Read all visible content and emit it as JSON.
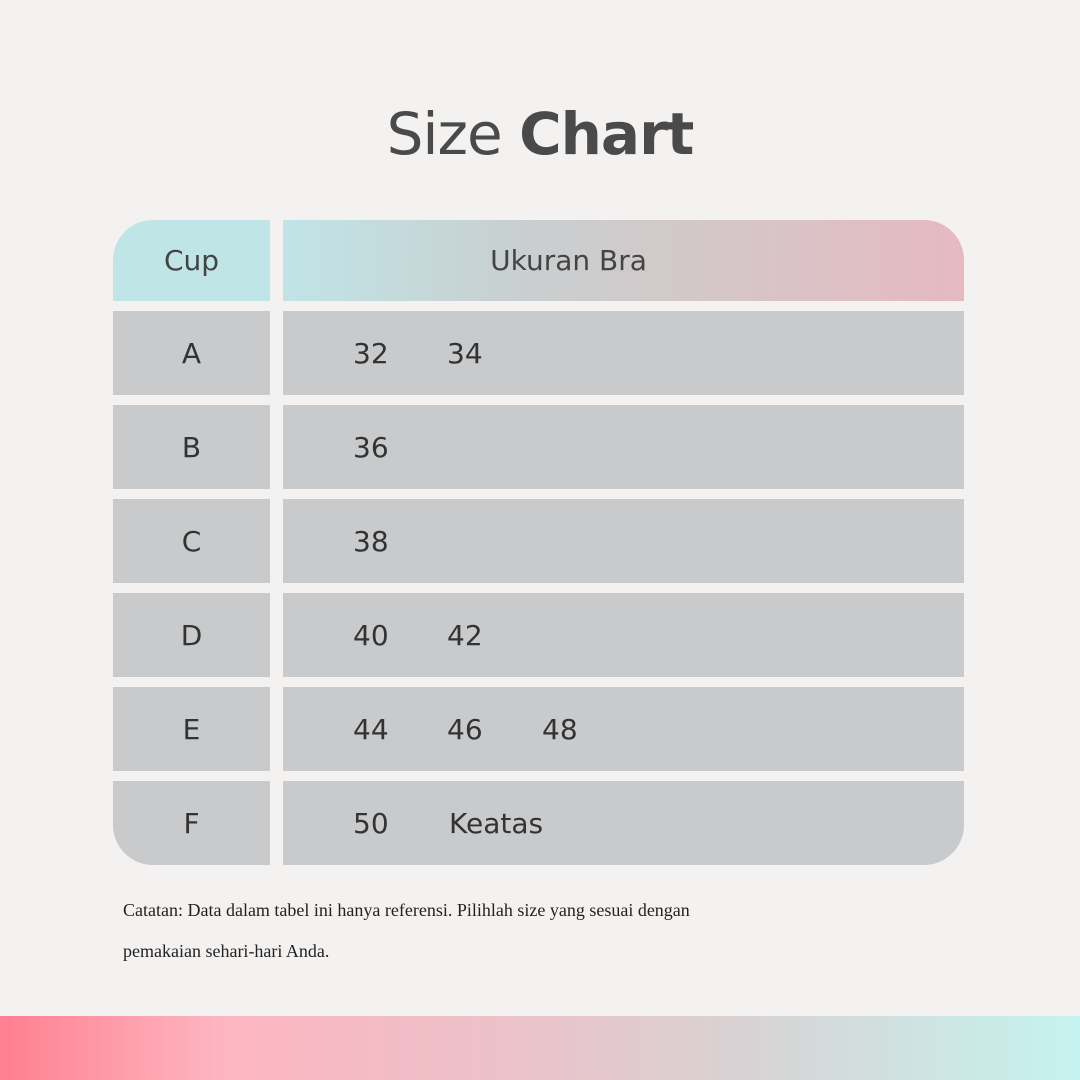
{
  "title": {
    "light": "Size",
    "bold": "Chart"
  },
  "table": {
    "headers": {
      "cup": "Cup",
      "size": "Ukuran Bra"
    },
    "rows": [
      {
        "cup": "A",
        "sizes": [
          "32",
          "34"
        ]
      },
      {
        "cup": "B",
        "sizes": [
          "36"
        ]
      },
      {
        "cup": "C",
        "sizes": [
          "38"
        ]
      },
      {
        "cup": "D",
        "sizes": [
          "40",
          "42"
        ]
      },
      {
        "cup": "E",
        "sizes": [
          "44",
          "46",
          "48"
        ]
      },
      {
        "cup": "F",
        "sizes": [
          "50",
          "Keatas"
        ]
      }
    ]
  },
  "note": {
    "line1": "Catatan: Data dalam tabel ini hanya referensi. Pilihlah size yang sesuai dengan",
    "line2": "pemakaian sehari-hari Anda."
  },
  "colors": {
    "background": "#f4f2f1",
    "row": "#c9cacb",
    "header_cyan": "#bfe5e6",
    "header_pink": "#e6b9c1"
  }
}
